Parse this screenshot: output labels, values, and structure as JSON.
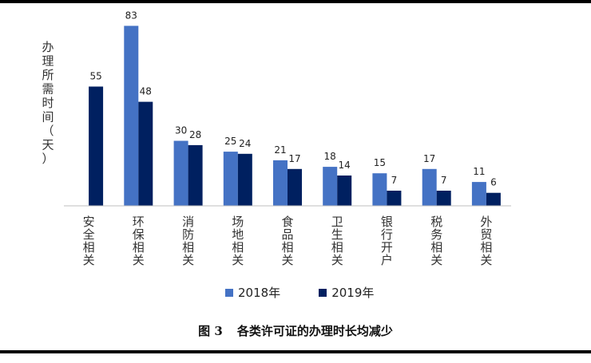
{
  "chart_data": {
    "type": "bar",
    "ylabel": "办理所需时间（天）",
    "xlabel": "",
    "categories": [
      "安全相关",
      "环保相关",
      "消防相关",
      "场地相关",
      "食品相关",
      "卫生相关",
      "银行开户",
      "税务相关",
      "外贸相关"
    ],
    "series": [
      {
        "name": "2018年",
        "color": "#4472C4",
        "values": [
          null,
          83,
          30,
          25,
          21,
          18,
          15,
          17,
          11
        ]
      },
      {
        "name": "2019年",
        "color": "#002060",
        "values": [
          55,
          48,
          28,
          24,
          17,
          14,
          7,
          7,
          6
        ]
      }
    ],
    "ylim": [
      0,
      85
    ],
    "grid": false,
    "legend": "bottom"
  },
  "caption": {
    "figure_no": "图 3",
    "text": "各类许可证的办理时长均减少"
  }
}
